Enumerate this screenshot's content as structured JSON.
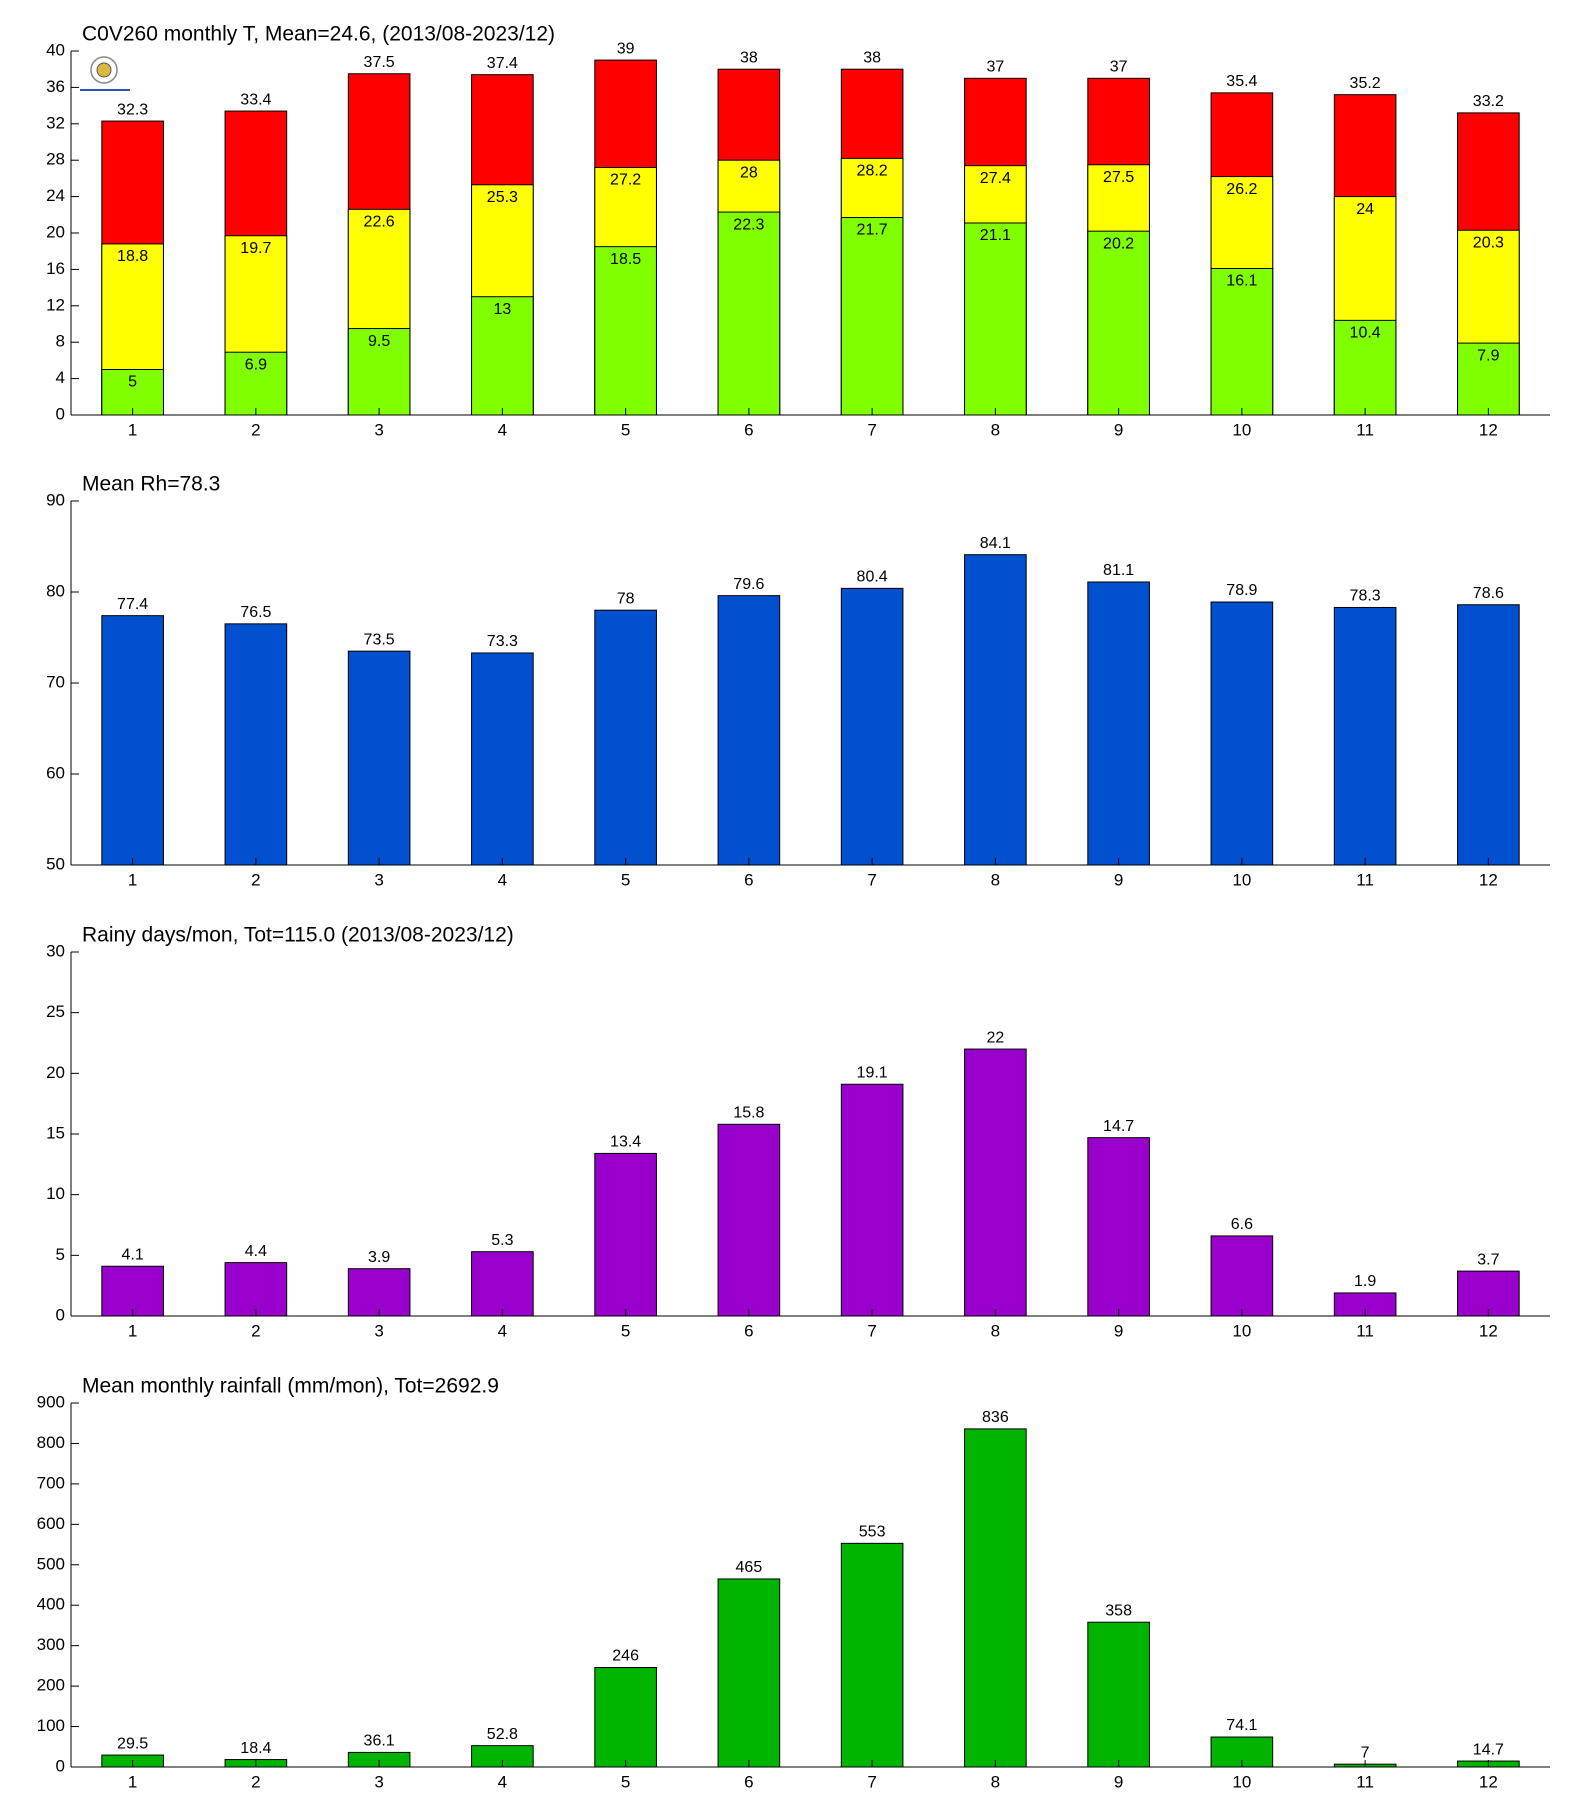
{
  "chart_data": [
    {
      "type": "bar",
      "title": "C0V260 monthly T, Mean=24.6, (2013/08-2023/12)",
      "categories": [
        "1",
        "2",
        "3",
        "4",
        "5",
        "6",
        "7",
        "8",
        "9",
        "10",
        "11",
        "12"
      ],
      "series": [
        {
          "color": "#ff0000",
          "values": [
            32.3,
            33.4,
            37.5,
            37.4,
            39,
            38,
            38,
            37,
            37,
            35.4,
            35.2,
            33.2
          ]
        },
        {
          "color": "#ffff00",
          "values": [
            18.8,
            19.7,
            22.6,
            25.3,
            27.2,
            28,
            28.2,
            27.4,
            27.5,
            26.2,
            24,
            20.3
          ]
        },
        {
          "color": "#80ff00",
          "values": [
            5,
            6.9,
            9.5,
            13,
            18.5,
            22.3,
            21.7,
            21.1,
            20.2,
            16.1,
            10.4,
            7.9
          ]
        }
      ],
      "ylim": [
        0,
        40
      ],
      "yticks": [
        0,
        4,
        8,
        12,
        16,
        20,
        24,
        28,
        32,
        36,
        40
      ]
    },
    {
      "type": "bar",
      "title": "Mean Rh=78.3",
      "categories": [
        "1",
        "2",
        "3",
        "4",
        "5",
        "6",
        "7",
        "8",
        "9",
        "10",
        "11",
        "12"
      ],
      "series": [
        {
          "color": "#0050d0",
          "values": [
            77.4,
            76.5,
            73.5,
            73.3,
            78,
            79.6,
            80.4,
            84.1,
            81.1,
            78.9,
            78.3,
            78.6
          ]
        }
      ],
      "ylim": [
        50,
        90
      ],
      "yticks": [
        50,
        60,
        70,
        80,
        90
      ]
    },
    {
      "type": "bar",
      "title": "Rainy days/mon, Tot=115.0 (2013/08-2023/12)",
      "categories": [
        "1",
        "2",
        "3",
        "4",
        "5",
        "6",
        "7",
        "8",
        "9",
        "10",
        "11",
        "12"
      ],
      "series": [
        {
          "color": "#9900cc",
          "values": [
            4.1,
            4.4,
            3.9,
            5.3,
            13.4,
            15.8,
            19.1,
            22,
            14.7,
            6.6,
            1.9,
            3.7
          ]
        }
      ],
      "ylim": [
        0,
        30
      ],
      "yticks": [
        0,
        5,
        10,
        15,
        20,
        25,
        30
      ]
    },
    {
      "type": "bar",
      "title": "Mean monthly rainfall (mm/mon), Tot=2692.9",
      "categories": [
        "1",
        "2",
        "3",
        "4",
        "5",
        "6",
        "7",
        "8",
        "9",
        "10",
        "11",
        "12"
      ],
      "series": [
        {
          "color": "#00b400",
          "values": [
            29.5,
            18.4,
            36.1,
            52.8,
            246,
            465,
            553,
            836,
            358,
            74.1,
            7,
            14.7
          ]
        }
      ],
      "ylim": [
        0,
        900
      ],
      "yticks": [
        0,
        100,
        200,
        300,
        400,
        500,
        600,
        700,
        800,
        900
      ]
    }
  ]
}
